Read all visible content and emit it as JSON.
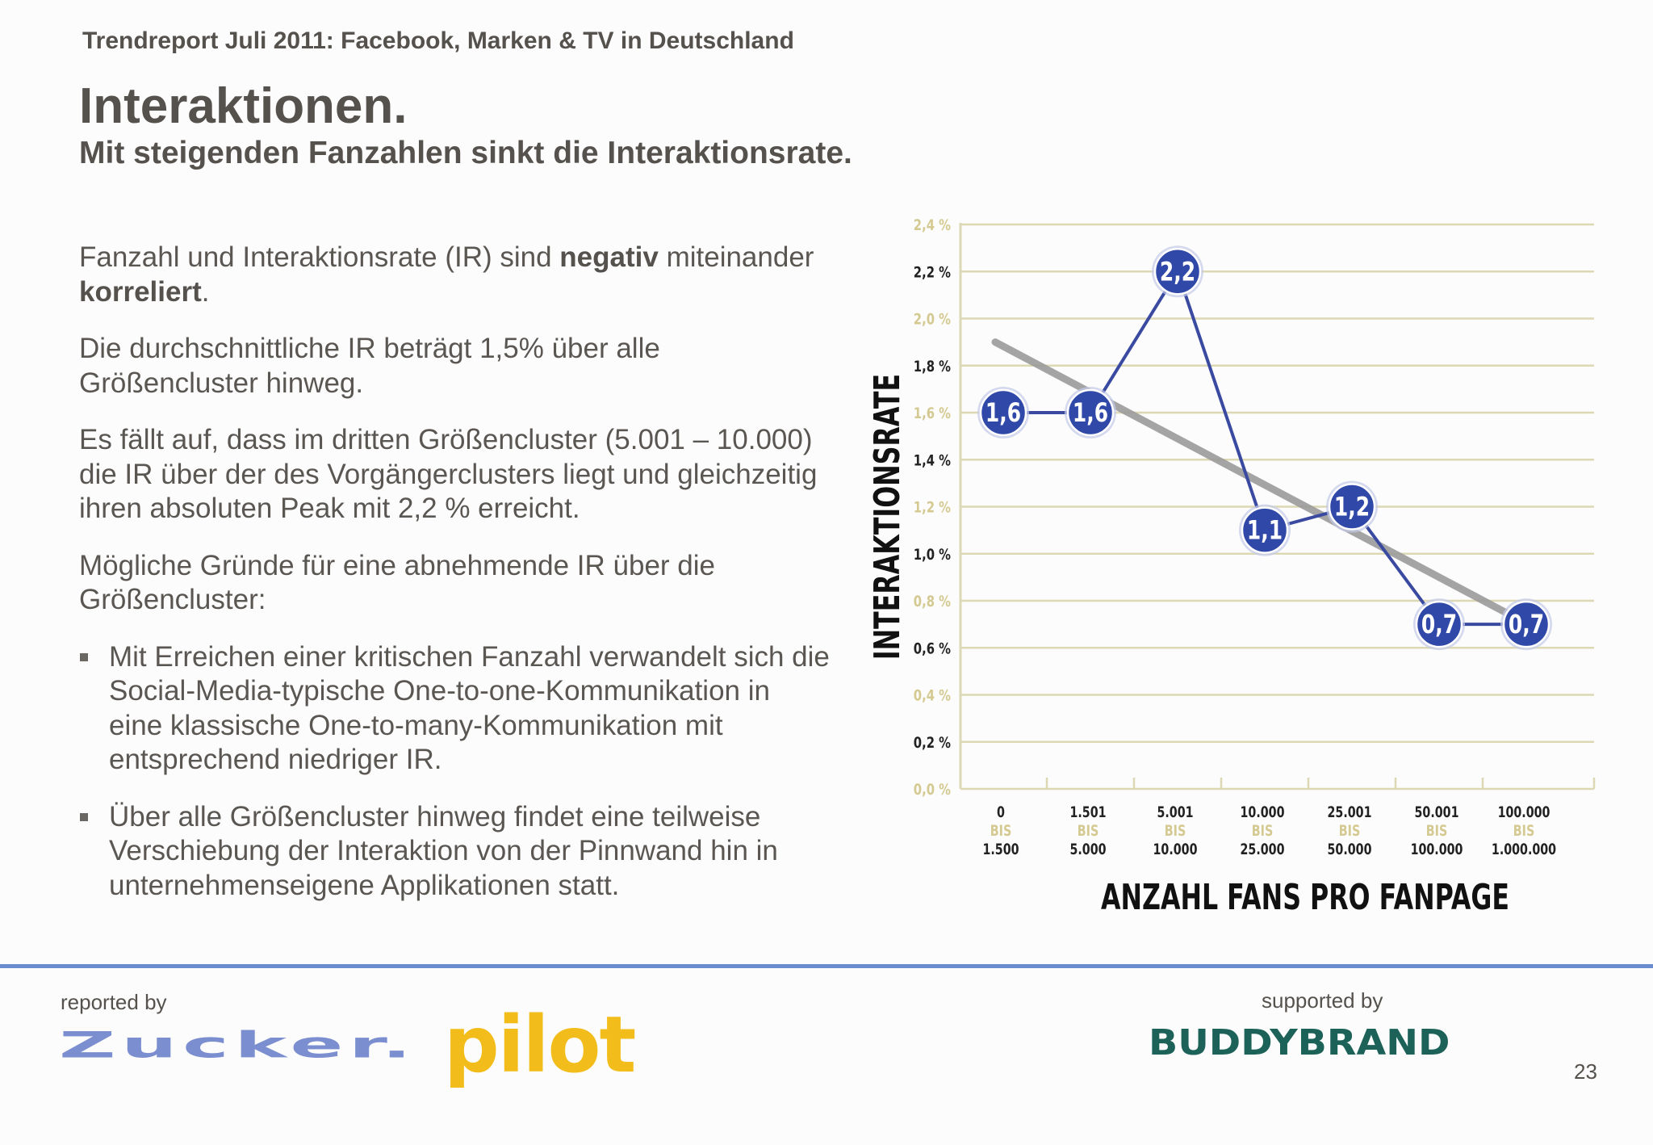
{
  "header": {
    "report_title": "Trendreport Juli 2011: Facebook, Marken & TV in Deutschland",
    "slide_title": "Interaktionen.",
    "slide_subtitle": "Mit steigenden Fanzahlen sinkt die Interaktionsrate."
  },
  "body": {
    "p1_a": "Fanzahl und Interaktionsrate (IR) sind ",
    "p1_b": "negativ",
    "p1_c": " miteinander ",
    "p1_d": "korreliert",
    "p1_e": ".",
    "p2": "Die durchschnittliche IR beträgt 1,5% über alle Größencluster hinweg.",
    "p3": "Es fällt auf, dass im dritten Größencluster (5.001 – 10.000) die IR über der des Vorgängerclusters liegt und gleichzeitig ihren absoluten Peak mit 2,2 % erreicht.",
    "p4": "Mögliche Gründe für eine abnehmende IR über die Größencluster:",
    "bullets": [
      "Mit Erreichen einer kritischen Fanzahl verwandelt sich die Social-Media-typische One-to-one-Kommunikation in eine klassische One-to-many-Kommunikation mit entsprechend niedriger IR.",
      "Über alle Größencluster hinweg findet eine teilweise Verschiebung der Interaktion von der Pinnwand hin in unternehmenseigene Applikationen statt."
    ]
  },
  "chart_data": {
    "type": "line",
    "ylabel": "INTERAKTIONSRATE",
    "xlabel": "ANZAHL FANS PRO FANPAGE",
    "ylim": [
      0,
      2.4
    ],
    "yticks": [
      {
        "value": 0.0,
        "label": "0,0 %"
      },
      {
        "value": 0.2,
        "label": "0,2 %"
      },
      {
        "value": 0.4,
        "label": "0,4 %"
      },
      {
        "value": 0.6,
        "label": "0,6 %"
      },
      {
        "value": 0.8,
        "label": "0,8 %"
      },
      {
        "value": 1.0,
        "label": "1,0 %"
      },
      {
        "value": 1.2,
        "label": "1,2 %"
      },
      {
        "value": 1.4,
        "label": "1,4 %"
      },
      {
        "value": 1.6,
        "label": "1,6 %"
      },
      {
        "value": 1.8,
        "label": "1,8 %"
      },
      {
        "value": 2.0,
        "label": "2,0 %"
      },
      {
        "value": 2.2,
        "label": "2,2 %"
      },
      {
        "value": 2.4,
        "label": "2,4 %"
      }
    ],
    "categories": [
      {
        "from": "0",
        "sep": "BIS",
        "to": "1.500"
      },
      {
        "from": "1.501",
        "sep": "BIS",
        "to": "5.000"
      },
      {
        "from": "5.001",
        "sep": "BIS",
        "to": "10.000"
      },
      {
        "from": "10.000",
        "sep": "BIS",
        "to": "25.000"
      },
      {
        "from": "25.001",
        "sep": "BIS",
        "to": "50.000"
      },
      {
        "from": "50.001",
        "sep": "BIS",
        "to": "100.000"
      },
      {
        "from": "100.000",
        "sep": "BIS",
        "to": "1.000.000"
      }
    ],
    "values": [
      1.6,
      1.6,
      2.2,
      1.1,
      1.2,
      0.7,
      0.7
    ],
    "value_labels": [
      "1,6",
      "1,6",
      "2,2",
      "1,1",
      "1,2",
      "0,7",
      "0,7"
    ],
    "trend_line": {
      "start": 1.9,
      "end": 0.74
    },
    "grid": true,
    "colors": {
      "series": "#3a4aa0",
      "marker": "#3048a8",
      "trend": "#9b9b9b",
      "grid": "#ddd8b4",
      "tick_bold": "#222222",
      "tick_muted": "#d4c990"
    }
  },
  "footer": {
    "reported_by": "reported by",
    "supported_by": "supported by",
    "logo_zucker": "Zucker.",
    "logo_pilot": "pilot",
    "logo_buddybrand": "BUDDYBRAND",
    "page_number": "23"
  }
}
